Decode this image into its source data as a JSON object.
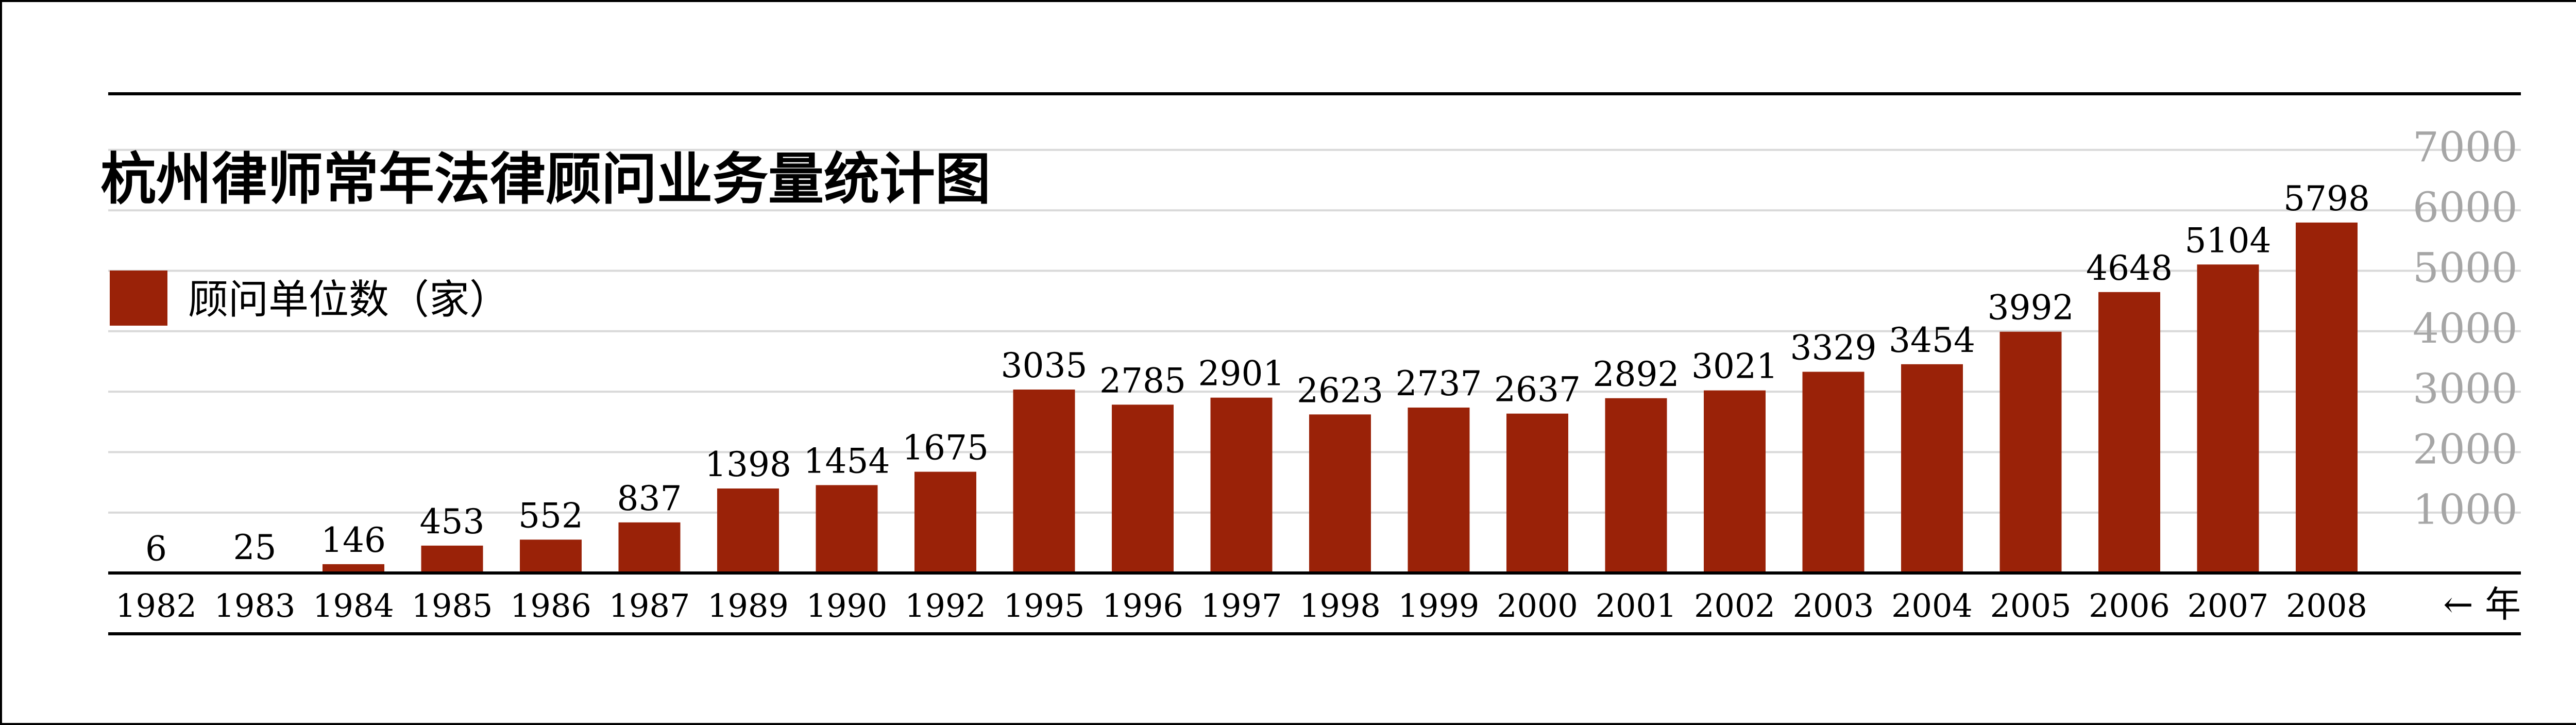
{
  "chart_data": {
    "type": "bar",
    "title": "杭州律师常年法律顾问业务量统计图",
    "xlabel": "← 年",
    "ylabel": "",
    "categories": [
      "1982",
      "1983",
      "1984",
      "1985",
      "1986",
      "1987",
      "1989",
      "1990",
      "1992",
      "1995",
      "1996",
      "1997",
      "1998",
      "1999",
      "2000",
      "2001",
      "2002",
      "2003",
      "2004",
      "2005",
      "2006",
      "2007",
      "2008"
    ],
    "series": [
      {
        "name": "顾问单位数（家）",
        "values": [
          6,
          25,
          146,
          453,
          552,
          837,
          1398,
          1454,
          1675,
          3035,
          2785,
          2901,
          2623,
          2737,
          2637,
          2892,
          3021,
          3329,
          3454,
          3992,
          4648,
          5104,
          5798
        ],
        "labels": [
          "6",
          "25",
          "146",
          "453",
          "552",
          "837",
          "1398",
          "1454",
          "1675",
          "3035",
          "2785",
          "2901",
          "2623",
          "2737",
          "2637",
          "2892",
          "3021",
          "3329",
          "3454",
          "3992",
          "4648",
          "5104",
          "5798"
        ]
      }
    ],
    "yticks": [
      "1000",
      "2000",
      "3000",
      "4000",
      "5000",
      "6000",
      "7000"
    ],
    "ylim": [
      0,
      7000
    ],
    "grid": true,
    "legend_position": "top-left",
    "colors": {
      "bar": "#9a2208",
      "grid": "#d9d9d9",
      "axis": "#000000",
      "ytick": "#a6a6a6"
    }
  }
}
